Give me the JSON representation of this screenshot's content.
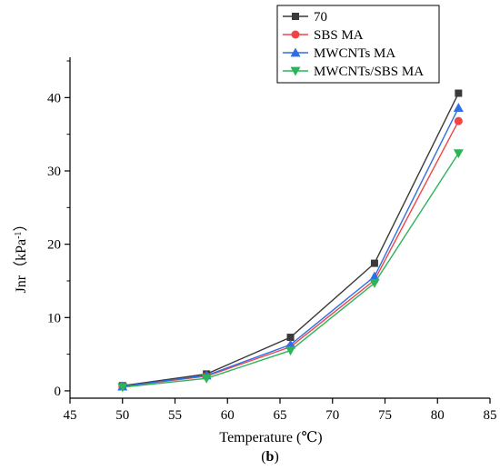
{
  "chart_data": {
    "type": "line",
    "xlabel": "Temperature (℃)",
    "ylabel_main": "Jnr（kPa",
    "ylabel_sup": "-1",
    "ylabel_tail": "）",
    "caption_open": "(",
    "caption_bold": "b",
    "caption_close": ")",
    "xlim": [
      45,
      85
    ],
    "ylim": [
      -1,
      45.5
    ],
    "xticks": [
      45,
      50,
      55,
      60,
      65,
      70,
      75,
      80,
      85
    ],
    "yticks": [
      0,
      10,
      20,
      30,
      40
    ],
    "grid": false,
    "legend_position": "top-right",
    "x": [
      50,
      58,
      66,
      74,
      82
    ],
    "series": [
      {
        "name": "70",
        "color": "#3a3a3a",
        "marker": "square",
        "values": [
          0.7,
          2.3,
          7.3,
          17.4,
          40.6
        ]
      },
      {
        "name": "SBS MA",
        "color": "#f04545",
        "marker": "circle",
        "values": [
          0.6,
          2.0,
          6.0,
          15.1,
          36.8
        ]
      },
      {
        "name": "MWCNTs MA",
        "color": "#2e6ee6",
        "marker": "triangle-up",
        "values": [
          0.6,
          2.1,
          6.3,
          15.6,
          38.6
        ]
      },
      {
        "name": "MWCNTs/SBS MA",
        "color": "#2db35a",
        "marker": "triangle-down",
        "values": [
          0.5,
          1.7,
          5.5,
          14.7,
          32.4
        ]
      }
    ]
  }
}
